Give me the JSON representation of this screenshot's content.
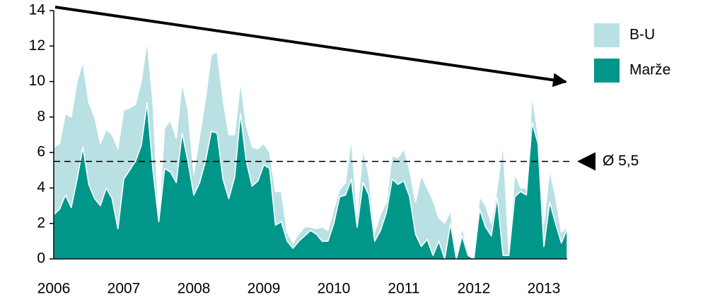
{
  "chart_data": {
    "type": "stacked_area",
    "categories": [
      "2006",
      null,
      null,
      null,
      null,
      null,
      null,
      null,
      null,
      null,
      null,
      null,
      "2007",
      null,
      null,
      null,
      null,
      null,
      null,
      null,
      null,
      null,
      null,
      null,
      "2008",
      null,
      null,
      null,
      null,
      null,
      null,
      null,
      null,
      null,
      null,
      null,
      "2009",
      null,
      null,
      null,
      null,
      null,
      null,
      null,
      null,
      null,
      null,
      null,
      "2010",
      null,
      null,
      null,
      null,
      null,
      null,
      null,
      null,
      null,
      null,
      null,
      "2011",
      null,
      null,
      null,
      null,
      null,
      null,
      null,
      null,
      null,
      null,
      null,
      "2012",
      null,
      null,
      null,
      null,
      null,
      null,
      null,
      null,
      null,
      null,
      null,
      "2013",
      null,
      null,
      null,
      null
    ],
    "series": [
      {
        "name": "Marže",
        "color": "#00968a",
        "values": [
          2.5,
          2.8,
          3.6,
          2.9,
          4.5,
          6.3,
          4.2,
          3.4,
          3.0,
          4.0,
          3.4,
          1.7,
          4.5,
          5.0,
          5.5,
          6.4,
          8.8,
          5.0,
          2.1,
          5.1,
          4.9,
          4.3,
          7.1,
          5.5,
          3.6,
          4.3,
          5.5,
          7.2,
          7.1,
          4.5,
          3.4,
          4.6,
          8.2,
          5.5,
          4.1,
          4.4,
          5.3,
          5.1,
          1.9,
          2.1,
          1.0,
          0.6,
          1.0,
          1.3,
          1.6,
          1.4,
          1.0,
          1.0,
          2.0,
          3.5,
          3.6,
          4.5,
          1.8,
          4.3,
          3.6,
          1.0,
          1.6,
          2.6,
          4.5,
          4.2,
          4.4,
          3.5,
          1.4,
          0.7,
          1.1,
          0.2,
          1.0,
          0.0,
          2.0,
          0.0,
          1.3,
          0.2,
          0.0,
          2.8,
          1.8,
          1.3,
          3.5,
          0.2,
          0.2,
          3.5,
          3.8,
          3.6,
          7.7,
          6.5,
          0.7,
          3.2,
          2.0,
          0.9,
          1.7
        ]
      },
      {
        "name": "B-U",
        "color": "#b9e0e3",
        "values": [
          3.8,
          3.7,
          4.6,
          5.1,
          5.5,
          4.8,
          4.6,
          4.6,
          3.5,
          3.3,
          3.6,
          4.5,
          3.9,
          3.5,
          3.2,
          3.6,
          3.5,
          3.8,
          0.1,
          2.3,
          2.9,
          2.5,
          2.8,
          2.9,
          1.2,
          2.6,
          3.5,
          4.3,
          4.6,
          4.5,
          3.6,
          2.4,
          1.8,
          2.0,
          2.2,
          1.8,
          1.2,
          0.9,
          1.9,
          1.7,
          0.5,
          0.3,
          0.4,
          0.5,
          0.2,
          0.3,
          0.8,
          0.6,
          0.8,
          0.4,
          0.7,
          2.3,
          0.7,
          1.9,
          1.1,
          0.5,
          0.9,
          0.6,
          1.3,
          1.5,
          1.8,
          1.5,
          1.8,
          4.0,
          2.9,
          3.1,
          1.3,
          2.0,
          0.7,
          0.1,
          0.5,
          0.1,
          0.1,
          0.7,
          1.2,
          0.7,
          0.5,
          6.3,
          0.2,
          1.3,
          0.2,
          0.4,
          1.5,
          0.5,
          1.3,
          1.8,
          1.5,
          0.6,
          0.1
        ]
      }
    ],
    "average": 5.5,
    "average_label": "Ø 5,5",
    "ylim": [
      0,
      14
    ],
    "yticks": [
      0,
      2,
      4,
      6,
      8,
      10,
      12,
      14
    ],
    "legend": "upper right"
  }
}
